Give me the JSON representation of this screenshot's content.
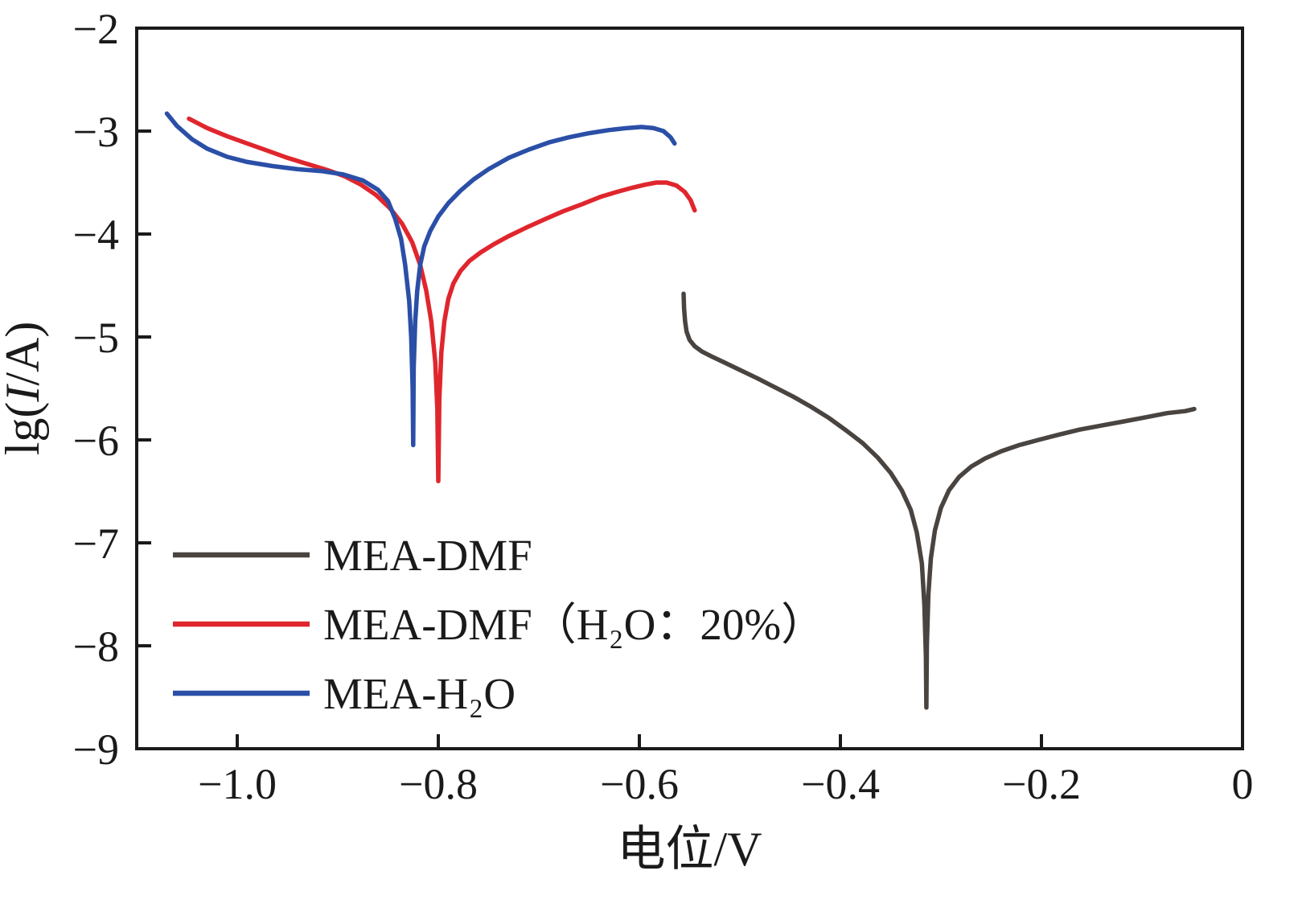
{
  "figure": {
    "background": "#ffffff",
    "axis_color": "#1a1a1a"
  },
  "chart_data": {
    "type": "line",
    "title": "",
    "xlabel": "电位/V",
    "ylabel": "lg(I/A)",
    "xlim": [
      -1.1,
      0
    ],
    "ylim": [
      -9,
      -2
    ],
    "xticks": [
      -1.0,
      -0.8,
      -0.6,
      -0.4,
      -0.2,
      0
    ],
    "yticks": [
      -2,
      -3,
      -4,
      -5,
      -6,
      -7,
      -8,
      -9
    ],
    "grid": false,
    "legend_position": "inside lower-left",
    "series": [
      {
        "name": "MEA-DMF",
        "color": "#4a4440",
        "points": [
          [
            -0.556,
            -4.58
          ],
          [
            -0.5555,
            -4.72
          ],
          [
            -0.5545,
            -4.85
          ],
          [
            -0.553,
            -4.95
          ],
          [
            -0.55,
            -5.03
          ],
          [
            -0.545,
            -5.09
          ],
          [
            -0.538,
            -5.14
          ],
          [
            -0.528,
            -5.19
          ],
          [
            -0.515,
            -5.25
          ],
          [
            -0.5,
            -5.32
          ],
          [
            -0.483,
            -5.4
          ],
          [
            -0.465,
            -5.49
          ],
          [
            -0.447,
            -5.58
          ],
          [
            -0.429,
            -5.68
          ],
          [
            -0.411,
            -5.79
          ],
          [
            -0.394,
            -5.91
          ],
          [
            -0.378,
            -6.03
          ],
          [
            -0.363,
            -6.17
          ],
          [
            -0.35,
            -6.32
          ],
          [
            -0.339,
            -6.49
          ],
          [
            -0.33,
            -6.68
          ],
          [
            -0.324,
            -6.9
          ],
          [
            -0.319,
            -7.2
          ],
          [
            -0.3165,
            -7.6
          ],
          [
            -0.315,
            -8.1
          ],
          [
            -0.3145,
            -8.6
          ],
          [
            -0.314,
            -8.0
          ],
          [
            -0.3125,
            -7.5
          ],
          [
            -0.31,
            -7.15
          ],
          [
            -0.306,
            -6.88
          ],
          [
            -0.3,
            -6.66
          ],
          [
            -0.292,
            -6.49
          ],
          [
            -0.282,
            -6.36
          ],
          [
            -0.27,
            -6.26
          ],
          [
            -0.256,
            -6.18
          ],
          [
            -0.24,
            -6.11
          ],
          [
            -0.222,
            -6.05
          ],
          [
            -0.203,
            -6.0
          ],
          [
            -0.183,
            -5.95
          ],
          [
            -0.162,
            -5.9
          ],
          [
            -0.14,
            -5.86
          ],
          [
            -0.118,
            -5.82
          ],
          [
            -0.096,
            -5.78
          ],
          [
            -0.075,
            -5.74
          ],
          [
            -0.057,
            -5.72
          ],
          [
            -0.048,
            -5.7
          ]
        ]
      },
      {
        "name": "MEA-DMF（H₂O：20%）",
        "color": "#e0262d",
        "points": [
          [
            -1.048,
            -2.88
          ],
          [
            -1.03,
            -2.97
          ],
          [
            -1.01,
            -3.05
          ],
          [
            -0.99,
            -3.12
          ],
          [
            -0.97,
            -3.19
          ],
          [
            -0.95,
            -3.26
          ],
          [
            -0.93,
            -3.32
          ],
          [
            -0.91,
            -3.38
          ],
          [
            -0.893,
            -3.44
          ],
          [
            -0.877,
            -3.52
          ],
          [
            -0.862,
            -3.62
          ],
          [
            -0.848,
            -3.75
          ],
          [
            -0.836,
            -3.9
          ],
          [
            -0.826,
            -4.08
          ],
          [
            -0.818,
            -4.3
          ],
          [
            -0.812,
            -4.55
          ],
          [
            -0.807,
            -4.85
          ],
          [
            -0.803,
            -5.25
          ],
          [
            -0.801,
            -5.7
          ],
          [
            -0.8,
            -6.4
          ],
          [
            -0.799,
            -5.6
          ],
          [
            -0.797,
            -5.15
          ],
          [
            -0.794,
            -4.85
          ],
          [
            -0.79,
            -4.63
          ],
          [
            -0.785,
            -4.48
          ],
          [
            -0.778,
            -4.36
          ],
          [
            -0.769,
            -4.26
          ],
          [
            -0.758,
            -4.18
          ],
          [
            -0.745,
            -4.1
          ],
          [
            -0.73,
            -4.02
          ],
          [
            -0.713,
            -3.94
          ],
          [
            -0.695,
            -3.86
          ],
          [
            -0.676,
            -3.78
          ],
          [
            -0.657,
            -3.71
          ],
          [
            -0.639,
            -3.64
          ],
          [
            -0.622,
            -3.59
          ],
          [
            -0.607,
            -3.55
          ],
          [
            -0.594,
            -3.52
          ],
          [
            -0.583,
            -3.5
          ],
          [
            -0.573,
            -3.5
          ],
          [
            -0.563,
            -3.53
          ],
          [
            -0.555,
            -3.59
          ],
          [
            -0.549,
            -3.67
          ],
          [
            -0.545,
            -3.77
          ]
        ]
      },
      {
        "name": "MEA-H₂O",
        "color": "#2b4fa7",
        "points": [
          [
            -1.07,
            -2.83
          ],
          [
            -1.06,
            -2.95
          ],
          [
            -1.045,
            -3.08
          ],
          [
            -1.03,
            -3.17
          ],
          [
            -1.01,
            -3.25
          ],
          [
            -0.99,
            -3.3
          ],
          [
            -0.965,
            -3.34
          ],
          [
            -0.94,
            -3.37
          ],
          [
            -0.915,
            -3.39
          ],
          [
            -0.895,
            -3.42
          ],
          [
            -0.875,
            -3.48
          ],
          [
            -0.86,
            -3.57
          ],
          [
            -0.85,
            -3.68
          ],
          [
            -0.843,
            -3.85
          ],
          [
            -0.837,
            -4.05
          ],
          [
            -0.833,
            -4.3
          ],
          [
            -0.829,
            -4.65
          ],
          [
            -0.827,
            -5.0
          ],
          [
            -0.8255,
            -5.5
          ],
          [
            -0.825,
            -6.05
          ],
          [
            -0.8245,
            -5.3
          ],
          [
            -0.823,
            -4.85
          ],
          [
            -0.821,
            -4.55
          ],
          [
            -0.818,
            -4.3
          ],
          [
            -0.814,
            -4.12
          ],
          [
            -0.808,
            -3.97
          ],
          [
            -0.8,
            -3.83
          ],
          [
            -0.79,
            -3.7
          ],
          [
            -0.778,
            -3.58
          ],
          [
            -0.765,
            -3.47
          ],
          [
            -0.75,
            -3.37
          ],
          [
            -0.73,
            -3.26
          ],
          [
            -0.71,
            -3.18
          ],
          [
            -0.69,
            -3.11
          ],
          [
            -0.67,
            -3.06
          ],
          [
            -0.65,
            -3.02
          ],
          [
            -0.63,
            -2.99
          ],
          [
            -0.612,
            -2.97
          ],
          [
            -0.598,
            -2.96
          ],
          [
            -0.586,
            -2.97
          ],
          [
            -0.576,
            -3.0
          ],
          [
            -0.569,
            -3.06
          ],
          [
            -0.565,
            -3.12
          ]
        ]
      }
    ]
  }
}
